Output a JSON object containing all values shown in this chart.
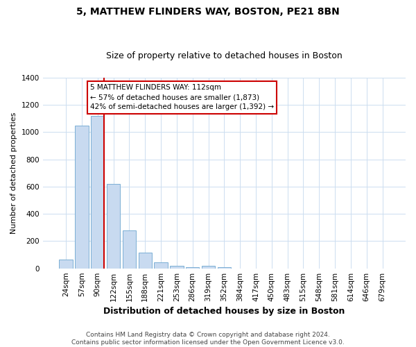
{
  "title": "5, MATTHEW FLINDERS WAY, BOSTON, PE21 8BN",
  "subtitle": "Size of property relative to detached houses in Boston",
  "xlabel": "Distribution of detached houses by size in Boston",
  "ylabel": "Number of detached properties",
  "bar_labels": [
    "24sqm",
    "57sqm",
    "90sqm",
    "122sqm",
    "155sqm",
    "188sqm",
    "221sqm",
    "253sqm",
    "286sqm",
    "319sqm",
    "352sqm",
    "384sqm",
    "417sqm",
    "450sqm",
    "483sqm",
    "515sqm",
    "548sqm",
    "581sqm",
    "614sqm",
    "646sqm",
    "679sqm"
  ],
  "bar_values": [
    65,
    1047,
    1120,
    621,
    281,
    116,
    42,
    18,
    10,
    18,
    10,
    0,
    0,
    0,
    0,
    0,
    0,
    0,
    0,
    0,
    0
  ],
  "bar_color": "#c8daf0",
  "bar_edge_color": "#7bafd4",
  "marker_line_color": "#cc0000",
  "ylim": [
    0,
    1400
  ],
  "yticks": [
    0,
    200,
    400,
    600,
    800,
    1000,
    1200,
    1400
  ],
  "annotation_title": "5 MATTHEW FLINDERS WAY: 112sqm",
  "annotation_line1": "← 57% of detached houses are smaller (1,873)",
  "annotation_line2": "42% of semi-detached houses are larger (1,392) →",
  "footer_line1": "Contains HM Land Registry data © Crown copyright and database right 2024.",
  "footer_line2": "Contains public sector information licensed under the Open Government Licence v3.0.",
  "background_color": "#ffffff",
  "grid_color": "#ccddf0",
  "title_fontsize": 10,
  "subtitle_fontsize": 9,
  "xlabel_fontsize": 9,
  "ylabel_fontsize": 8,
  "tick_fontsize": 7.5,
  "footer_fontsize": 6.5,
  "ann_fontsize": 7.5
}
